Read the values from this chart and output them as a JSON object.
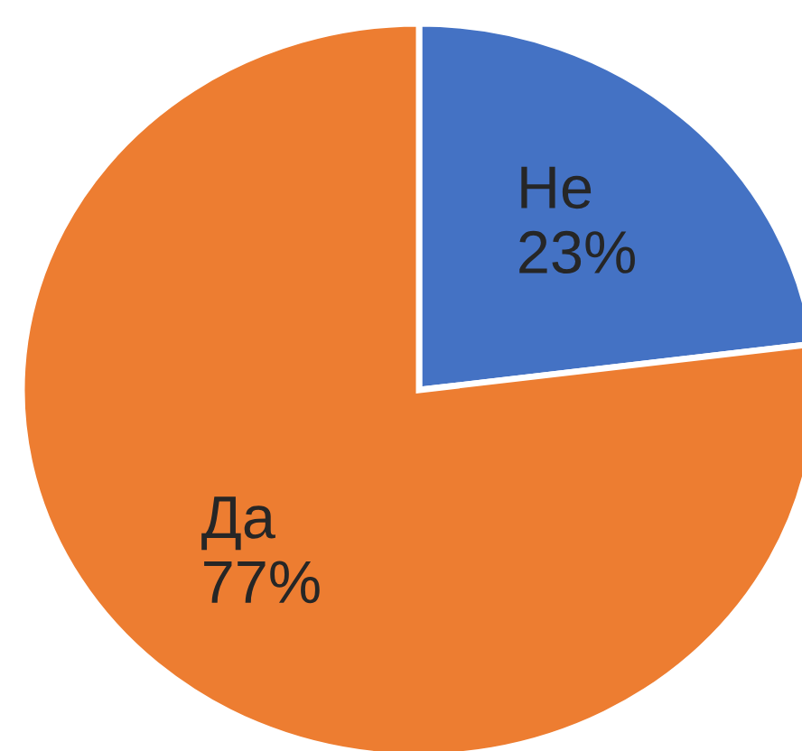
{
  "chart_data": {
    "type": "pie",
    "categories": [
      "Не",
      "Да"
    ],
    "values": [
      23,
      77
    ],
    "colors": [
      "#4472c4",
      "#ed7d31"
    ],
    "value_labels": [
      "23%",
      "77%"
    ]
  }
}
